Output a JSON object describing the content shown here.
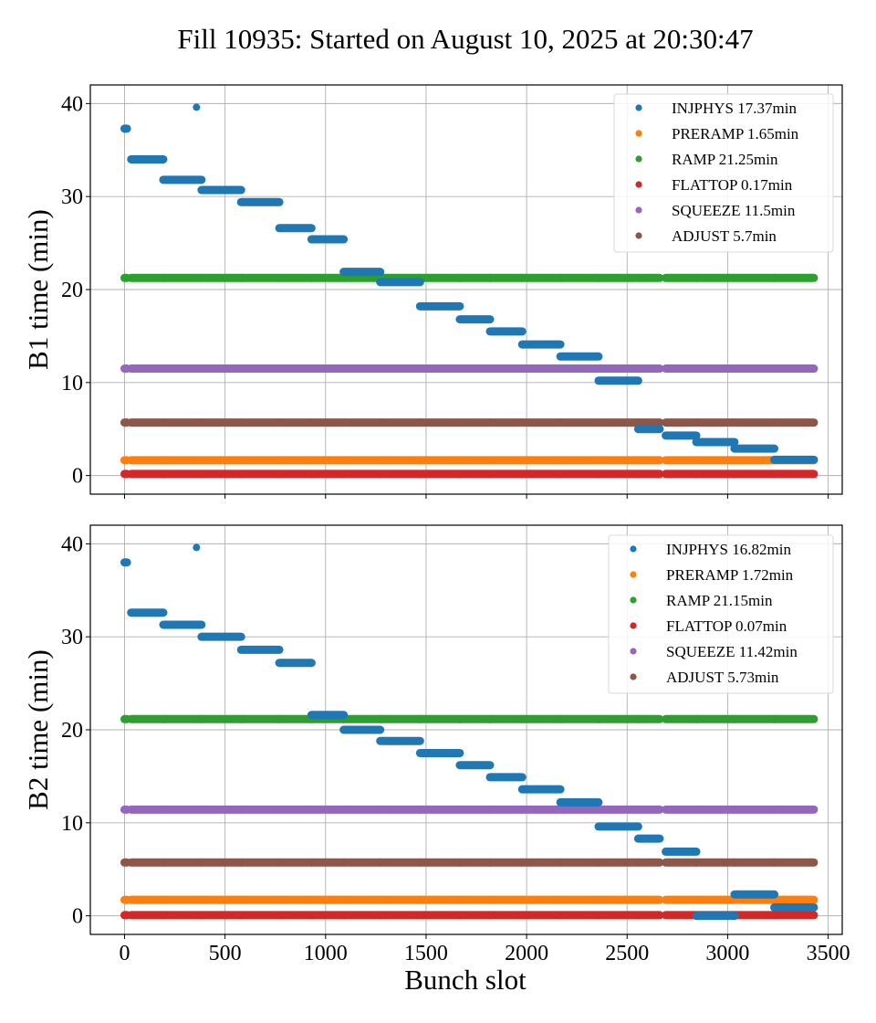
{
  "chart_data": {
    "type": "scatter",
    "title": "Fill 10935: Started on August 10, 2025 at 20:30:47",
    "xlabel": "Bunch slot",
    "xlim": [
      -170,
      3570
    ],
    "xticks": [
      0,
      500,
      1000,
      1500,
      2000,
      2500,
      3000,
      3500
    ],
    "grid": true,
    "colors": {
      "INJPHYS": "#1f77b4",
      "PRERAMP": "#ff7f0e",
      "RAMP": "#2ca02c",
      "FLATTOP": "#d62728",
      "SQUEEZE": "#9467bd",
      "ADJUST": "#8c564b"
    },
    "trains": [
      [
        0,
        12
      ],
      [
        33,
        193
      ],
      [
        193,
        383
      ],
      [
        383,
        580
      ],
      [
        580,
        770
      ],
      [
        770,
        930
      ],
      [
        930,
        1090
      ],
      [
        1090,
        1272
      ],
      [
        1272,
        1470
      ],
      [
        1470,
        1668
      ],
      [
        1668,
        1818
      ],
      [
        1818,
        1978
      ],
      [
        1978,
        2168
      ],
      [
        2168,
        2358
      ],
      [
        2358,
        2555
      ],
      [
        2555,
        2662
      ],
      [
        2692,
        2844
      ],
      [
        2844,
        3034
      ],
      [
        3034,
        3232
      ],
      [
        3232,
        3429
      ]
    ],
    "panels": [
      {
        "ylabel": "B1 time (min)",
        "ylim": [
          -2,
          42
        ],
        "yticks": [
          0,
          10,
          20,
          30,
          40
        ],
        "legend_position": "top-right",
        "legend": [
          "INJPHYS 17.37min",
          "PRERAMP 1.65min",
          "RAMP 21.25min",
          "FLATTOP 0.17min",
          "SQUEEZE 11.5min",
          "ADJUST 5.7min"
        ],
        "series": [
          {
            "name": "INJPHYS",
            "train_values": [
              37.3,
              34.0,
              31.8,
              30.7,
              29.4,
              26.6,
              25.4,
              21.9,
              20.8,
              18.2,
              16.8,
              15.5,
              14.1,
              12.8,
              10.2,
              5.0,
              4.3,
              3.6,
              2.9,
              1.7
            ],
            "extra_points": [
              [
                358,
                39.6
              ]
            ]
          },
          {
            "name": "PRERAMP",
            "value": 1.65
          },
          {
            "name": "RAMP",
            "value": 21.25
          },
          {
            "name": "FLATTOP",
            "value": 0.17
          },
          {
            "name": "SQUEEZE",
            "value": 11.5
          },
          {
            "name": "ADJUST",
            "value": 5.7
          }
        ]
      },
      {
        "ylabel": "B2 time (min)",
        "ylim": [
          -2,
          42
        ],
        "yticks": [
          0,
          10,
          20,
          30,
          40
        ],
        "legend_position": "top-right",
        "legend": [
          "INJPHYS 16.82min",
          "PRERAMP 1.72min",
          "RAMP 21.15min",
          "FLATTOP 0.07min",
          "SQUEEZE 11.42min",
          "ADJUST 5.73min"
        ],
        "series": [
          {
            "name": "INJPHYS",
            "train_values": [
              38.0,
              32.6,
              31.3,
              30.0,
              28.6,
              27.2,
              21.6,
              20.0,
              18.8,
              17.5,
              16.2,
              14.9,
              13.6,
              12.2,
              9.6,
              8.3,
              6.9,
              0.0,
              2.3,
              0.9
            ],
            "extra_points": [
              [
                358,
                39.6
              ]
            ]
          },
          {
            "name": "PRERAMP",
            "value": 1.72
          },
          {
            "name": "RAMP",
            "value": 21.15
          },
          {
            "name": "FLATTOP",
            "value": 0.07
          },
          {
            "name": "SQUEEZE",
            "value": 11.42
          },
          {
            "name": "ADJUST",
            "value": 5.73
          }
        ]
      }
    ]
  }
}
